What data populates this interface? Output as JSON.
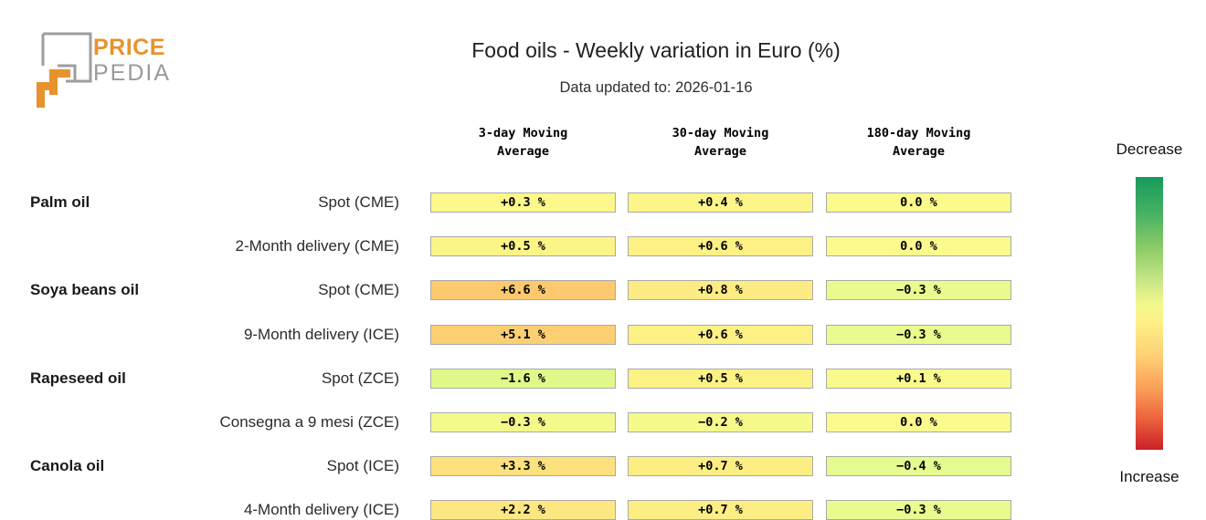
{
  "logo": {
    "line1": "PRICE",
    "line2": "PEDIA",
    "brand_orange": "#e8922e",
    "brand_gray": "#9a9a9a"
  },
  "header": {
    "title": "Food oils - Weekly variation in Euro (%)",
    "subtitle": "Data updated to: 2026-01-16"
  },
  "columns": [
    "3-day Moving\nAverage",
    "30-day Moving\nAverage",
    "180-day Moving\nAverage"
  ],
  "rows": [
    {
      "group": "Palm oil",
      "label": "Spot (CME)",
      "cells": [
        {
          "text": "+0.3 %",
          "color": "#FCF88B"
        },
        {
          "text": "+0.4 %",
          "color": "#FDF589"
        },
        {
          "text": "0.0 %",
          "color": "#FAFA8D"
        }
      ]
    },
    {
      "group": "",
      "label": "2-Month delivery (CME)",
      "cells": [
        {
          "text": "+0.5 %",
          "color": "#FDF487"
        },
        {
          "text": "+0.6 %",
          "color": "#FDF085"
        },
        {
          "text": "0.0 %",
          "color": "#FAFA8D"
        }
      ]
    },
    {
      "group": "Soya beans oil",
      "label": "Spot (CME)",
      "cells": [
        {
          "text": "+6.6 %",
          "color": "#FCC96F"
        },
        {
          "text": "+0.8 %",
          "color": "#FDEC83"
        },
        {
          "text": "−0.3 %",
          "color": "#EBFA8E"
        }
      ]
    },
    {
      "group": "",
      "label": "9-Month delivery (ICE)",
      "cells": [
        {
          "text": "+5.1 %",
          "color": "#FDCF73"
        },
        {
          "text": "+0.6 %",
          "color": "#FDF085"
        },
        {
          "text": "−0.3 %",
          "color": "#EBFA8E"
        }
      ]
    },
    {
      "group": "Rapeseed oil",
      "label": "Spot (ZCE)",
      "cells": [
        {
          "text": "−1.6 %",
          "color": "#E0F88A"
        },
        {
          "text": "+0.5 %",
          "color": "#FDF284"
        },
        {
          "text": "+0.1 %",
          "color": "#F9FA8C"
        }
      ]
    },
    {
      "group": "",
      "label": "Consegna a 9 mesi (ZCE)",
      "cells": [
        {
          "text": "−0.3 %",
          "color": "#F3FA8B"
        },
        {
          "text": "−0.2 %",
          "color": "#F5FA8B"
        },
        {
          "text": "0.0 %",
          "color": "#FAFA8D"
        }
      ]
    },
    {
      "group": "Canola oil",
      "label": "Spot (ICE)",
      "cells": [
        {
          "text": "+3.3 %",
          "color": "#FDE17E"
        },
        {
          "text": "+0.7 %",
          "color": "#FDEE84"
        },
        {
          "text": "−0.4 %",
          "color": "#E4FB90"
        }
      ]
    },
    {
      "group": "",
      "label": "4-Month delivery (ICE)",
      "cells": [
        {
          "text": "+2.2 %",
          "color": "#FDE782"
        },
        {
          "text": "+0.7 %",
          "color": "#FDEE84"
        },
        {
          "text": "−0.3 %",
          "color": "#EBFA8E"
        }
      ]
    }
  ],
  "legend": {
    "top_label": "Decrease",
    "bottom_label": "Increase",
    "gradient_stops": [
      "#169a5b 0%",
      "#45b163 13%",
      "#8ccb67 26%",
      "#c8e687 38%",
      "#f3f88c 47%",
      "#fdf188 53%",
      "#fdcf74 66%",
      "#fa9c57 78%",
      "#ec603d 89%",
      "#c92027 100%"
    ]
  },
  "chart_data": {
    "type": "heatmap",
    "title": "Food oils - Weekly variation in Euro (%)",
    "subtitle": "Data updated to: 2026-01-16",
    "unit": "%",
    "columns": [
      "3-day Moving Average",
      "30-day Moving Average",
      "180-day Moving Average"
    ],
    "rows": [
      {
        "group": "Palm oil",
        "series": "Spot (CME)",
        "values": [
          0.3,
          0.4,
          0.0
        ]
      },
      {
        "group": "Palm oil",
        "series": "2-Month delivery (CME)",
        "values": [
          0.5,
          0.6,
          0.0
        ]
      },
      {
        "group": "Soya beans oil",
        "series": "Spot (CME)",
        "values": [
          6.6,
          0.8,
          -0.3
        ]
      },
      {
        "group": "Soya beans oil",
        "series": "9-Month delivery (ICE)",
        "values": [
          5.1,
          0.6,
          -0.3
        ]
      },
      {
        "group": "Rapeseed oil",
        "series": "Spot (ZCE)",
        "values": [
          -1.6,
          0.5,
          0.1
        ]
      },
      {
        "group": "Rapeseed oil",
        "series": "Consegna a 9 mesi (ZCE)",
        "values": [
          -0.3,
          -0.2,
          0.0
        ]
      },
      {
        "group": "Canola oil",
        "series": "Spot (ICE)",
        "values": [
          3.3,
          0.7,
          -0.4
        ]
      },
      {
        "group": "Canola oil",
        "series": "4-Month delivery (ICE)",
        "values": [
          2.2,
          0.7,
          -0.3
        ]
      }
    ],
    "legend": {
      "top": "Decrease",
      "bottom": "Increase"
    },
    "colormap": "green = decrease, yellow = near zero, orange/red = increase"
  }
}
